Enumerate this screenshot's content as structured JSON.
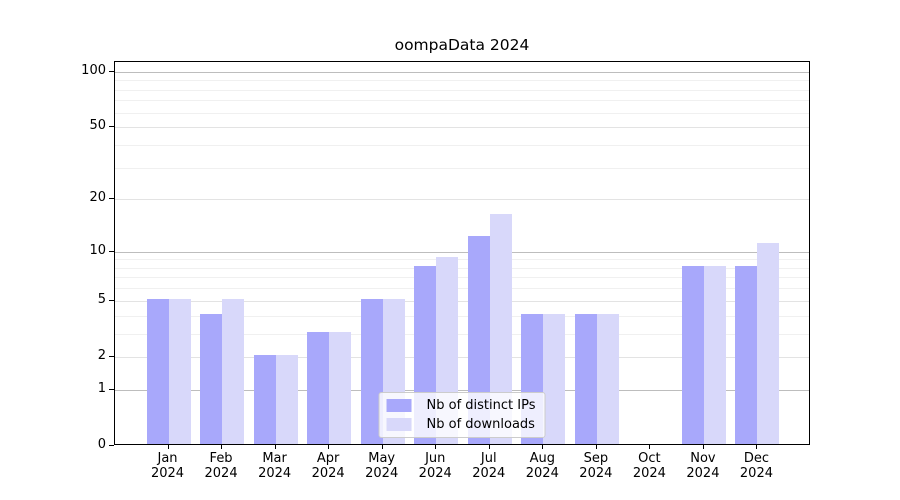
{
  "chart_data": {
    "type": "bar",
    "title": "oompaData 2024",
    "categories": [
      "Jan 2024",
      "Feb 2024",
      "Mar 2024",
      "Apr 2024",
      "May 2024",
      "Jun 2024",
      "Jul 2024",
      "Aug 2024",
      "Sep 2024",
      "Oct 2024",
      "Nov 2024",
      "Dec 2024"
    ],
    "series": [
      {
        "name": "Nb of distinct IPs",
        "key": "distinct-ips",
        "color": "#a8a8fb",
        "values": [
          5,
          4,
          2,
          3,
          5,
          8,
          12,
          4,
          4,
          0,
          8,
          8
        ]
      },
      {
        "name": "Nb of downloads",
        "key": "downloads",
        "color": "#d8d8fa",
        "values": [
          5,
          5,
          2,
          3,
          5,
          9,
          16,
          4,
          4,
          0,
          8,
          11
        ]
      }
    ],
    "xlabel": "",
    "ylabel": "",
    "yscale": "log1p",
    "ylim": [
      0,
      113
    ],
    "yticks_labeled": [
      0,
      1,
      2,
      5,
      10,
      20,
      50,
      100
    ],
    "yticks_major": [
      1,
      10,
      100
    ],
    "yticks_minor_labeled": [
      2,
      5,
      20,
      50
    ],
    "yticks_minor_unlabeled": [
      3,
      4,
      6,
      7,
      8,
      9,
      30,
      40,
      60,
      70,
      80,
      90
    ],
    "grid": true,
    "legend_position": "lower center"
  },
  "colors": {
    "grid_major": "#bdbdbd",
    "grid_minor_labeled": "#e3e3e3",
    "grid_minor": "#f0f0f0",
    "spine": "#000000",
    "text": "#000000",
    "legend_border": "#cccccc",
    "background": "#ffffff"
  }
}
